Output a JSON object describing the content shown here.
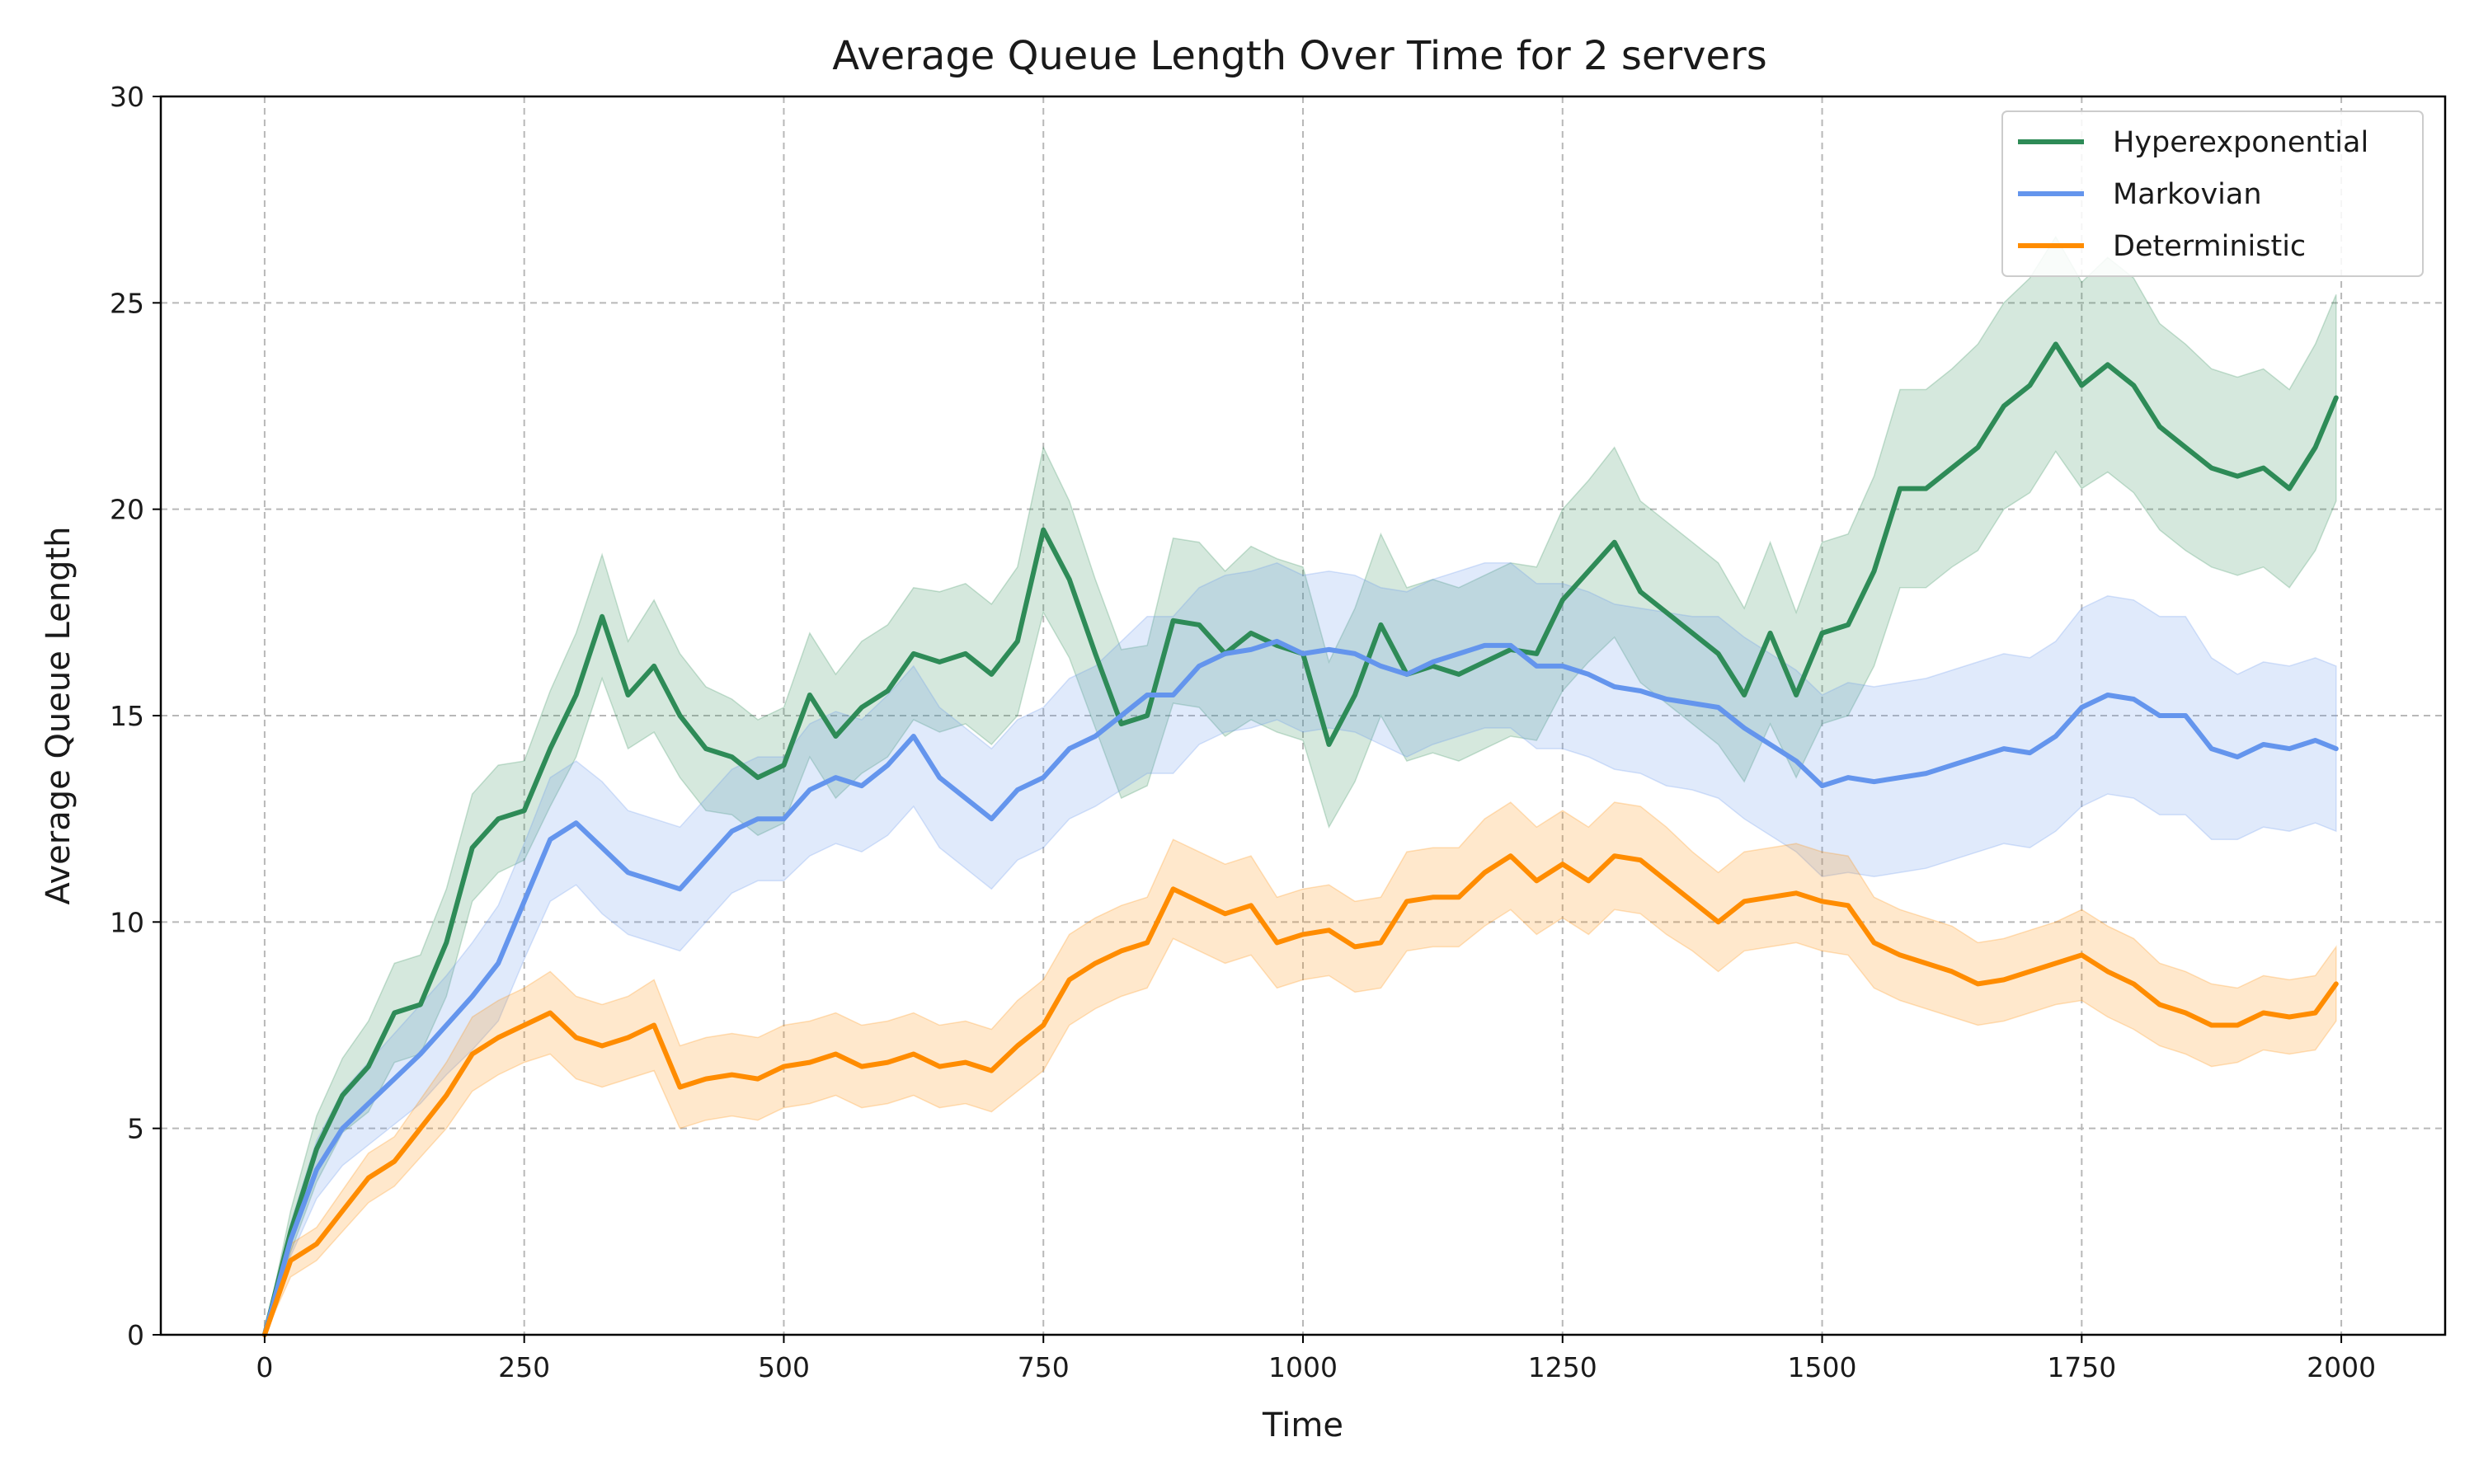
{
  "chart_data": {
    "type": "line",
    "title": "Average Queue Length Over Time for 2 servers",
    "xlabel": "Time",
    "ylabel": "Average Queue Length",
    "xlim": [
      -100,
      2100
    ],
    "ylim": [
      0,
      30
    ],
    "xticks": [
      0,
      250,
      500,
      750,
      1000,
      1250,
      1500,
      1750,
      2000
    ],
    "yticks": [
      0,
      5,
      10,
      15,
      20,
      25,
      30
    ],
    "grid": true,
    "legend_position": "top-right",
    "band_opacity": 0.2,
    "series": [
      {
        "name": "Hyperexponential",
        "color": "#2e8b57",
        "x": [
          0,
          25,
          50,
          75,
          100,
          125,
          150,
          175,
          200,
          225,
          250,
          275,
          300,
          325,
          350,
          375,
          400,
          425,
          450,
          475,
          500,
          525,
          550,
          575,
          600,
          625,
          650,
          675,
          700,
          725,
          750,
          775,
          800,
          825,
          850,
          875,
          900,
          925,
          950,
          975,
          1000,
          1025,
          1050,
          1075,
          1100,
          1125,
          1150,
          1175,
          1200,
          1225,
          1250,
          1275,
          1300,
          1325,
          1350,
          1375,
          1400,
          1425,
          1450,
          1475,
          1500,
          1525,
          1550,
          1575,
          1600,
          1625,
          1650,
          1675,
          1700,
          1725,
          1750,
          1775,
          1800,
          1825,
          1850,
          1875,
          1900,
          1925,
          1950,
          1975,
          1995
        ],
        "values": [
          0,
          2.5,
          4.5,
          5.8,
          6.5,
          7.8,
          8.0,
          9.5,
          11.8,
          12.5,
          12.7,
          14.2,
          15.5,
          17.4,
          15.5,
          16.2,
          15.0,
          14.2,
          14.0,
          13.5,
          13.8,
          15.5,
          14.5,
          15.2,
          15.6,
          16.5,
          16.3,
          16.5,
          16.0,
          16.8,
          19.5,
          18.3,
          16.5,
          14.8,
          15.0,
          17.3,
          17.2,
          16.5,
          17.0,
          16.7,
          16.5,
          14.3,
          15.5,
          17.2,
          16.0,
          16.2,
          16.0,
          16.3,
          16.6,
          16.5,
          17.8,
          18.5,
          19.2,
          18.0,
          17.5,
          17.0,
          16.5,
          15.5,
          17.0,
          15.5,
          17.0,
          17.2,
          18.5,
          20.5,
          20.5,
          21.0,
          21.5,
          22.5,
          23.0,
          24.0,
          23.0,
          23.5,
          23.0,
          22.0,
          21.5,
          21.0,
          20.8,
          21.0,
          20.5,
          21.5,
          22.7
        ],
        "lower": [
          0,
          2.0,
          3.7,
          4.9,
          5.4,
          6.6,
          6.8,
          8.2,
          10.5,
          11.2,
          11.5,
          12.8,
          14.0,
          15.9,
          14.2,
          14.6,
          13.5,
          12.7,
          12.6,
          12.1,
          12.4,
          14.0,
          13.0,
          13.6,
          14.0,
          14.9,
          14.6,
          14.8,
          14.3,
          15.0,
          17.5,
          16.4,
          14.7,
          13.0,
          13.3,
          15.3,
          15.2,
          14.5,
          14.9,
          14.6,
          14.4,
          12.3,
          13.4,
          15.0,
          13.9,
          14.1,
          13.9,
          14.2,
          14.5,
          14.4,
          15.6,
          16.3,
          16.9,
          15.8,
          15.3,
          14.8,
          14.3,
          13.4,
          14.8,
          13.5,
          14.8,
          15.0,
          16.2,
          18.1,
          18.1,
          18.6,
          19.0,
          20.0,
          20.4,
          21.4,
          20.5,
          20.9,
          20.4,
          19.5,
          19.0,
          18.6,
          18.4,
          18.6,
          18.1,
          19.0,
          20.2
        ],
        "upper": [
          0,
          3.0,
          5.3,
          6.7,
          7.6,
          9.0,
          9.2,
          10.8,
          13.1,
          13.8,
          13.9,
          15.6,
          17.0,
          18.9,
          16.8,
          17.8,
          16.5,
          15.7,
          15.4,
          14.9,
          15.2,
          17.0,
          16.0,
          16.8,
          17.2,
          18.1,
          18.0,
          18.2,
          17.7,
          18.6,
          21.5,
          20.2,
          18.3,
          16.6,
          16.7,
          19.3,
          19.2,
          18.5,
          19.1,
          18.8,
          18.6,
          16.3,
          17.6,
          19.4,
          18.1,
          18.3,
          18.1,
          18.4,
          18.7,
          18.6,
          20.0,
          20.7,
          21.5,
          20.2,
          19.7,
          19.2,
          18.7,
          17.6,
          19.2,
          17.5,
          19.2,
          19.4,
          20.8,
          22.9,
          22.9,
          23.4,
          24.0,
          25.0,
          25.6,
          26.6,
          25.5,
          26.1,
          25.6,
          24.5,
          24.0,
          23.4,
          23.2,
          23.4,
          22.9,
          24.0,
          25.2
        ]
      },
      {
        "name": "Markovian",
        "color": "#6495ed",
        "x": [
          0,
          25,
          50,
          75,
          100,
          125,
          150,
          175,
          200,
          225,
          250,
          275,
          300,
          325,
          350,
          375,
          400,
          425,
          450,
          475,
          500,
          525,
          550,
          575,
          600,
          625,
          650,
          675,
          700,
          725,
          750,
          775,
          800,
          825,
          850,
          875,
          900,
          925,
          950,
          975,
          1000,
          1025,
          1050,
          1075,
          1100,
          1125,
          1150,
          1175,
          1200,
          1225,
          1250,
          1275,
          1300,
          1325,
          1350,
          1375,
          1400,
          1425,
          1450,
          1475,
          1500,
          1525,
          1550,
          1575,
          1600,
          1625,
          1650,
          1675,
          1700,
          1725,
          1750,
          1775,
          1800,
          1825,
          1850,
          1875,
          1900,
          1925,
          1950,
          1975,
          1995
        ],
        "values": [
          0,
          2.3,
          4.0,
          5.0,
          5.6,
          6.2,
          6.8,
          7.5,
          8.2,
          9.0,
          10.5,
          12.0,
          12.4,
          11.8,
          11.2,
          11.0,
          10.8,
          11.5,
          12.2,
          12.5,
          12.5,
          13.2,
          13.5,
          13.3,
          13.8,
          14.5,
          13.5,
          13.0,
          12.5,
          13.2,
          13.5,
          14.2,
          14.5,
          15.0,
          15.5,
          15.5,
          16.2,
          16.5,
          16.6,
          16.8,
          16.5,
          16.6,
          16.5,
          16.2,
          16.0,
          16.3,
          16.5,
          16.7,
          16.7,
          16.2,
          16.2,
          16.0,
          15.7,
          15.6,
          15.4,
          15.3,
          15.2,
          14.7,
          14.3,
          13.9,
          13.3,
          13.5,
          13.4,
          13.5,
          13.6,
          13.8,
          14.0,
          14.2,
          14.1,
          14.5,
          15.2,
          15.5,
          15.4,
          15.0,
          15.0,
          14.2,
          14.0,
          14.3,
          14.2,
          14.4,
          14.2
        ],
        "lower": [
          0,
          1.9,
          3.3,
          4.1,
          4.6,
          5.1,
          5.6,
          6.3,
          6.9,
          7.6,
          9.1,
          10.5,
          10.9,
          10.2,
          9.7,
          9.5,
          9.3,
          10.0,
          10.7,
          11.0,
          11.0,
          11.6,
          11.9,
          11.7,
          12.1,
          12.8,
          11.8,
          11.3,
          10.8,
          11.5,
          11.8,
          12.5,
          12.8,
          13.2,
          13.6,
          13.6,
          14.3,
          14.6,
          14.7,
          14.9,
          14.6,
          14.7,
          14.6,
          14.3,
          14.0,
          14.3,
          14.5,
          14.7,
          14.7,
          14.2,
          14.2,
          14.0,
          13.7,
          13.6,
          13.3,
          13.2,
          13.0,
          12.5,
          12.1,
          11.7,
          11.1,
          11.2,
          11.1,
          11.2,
          11.3,
          11.5,
          11.7,
          11.9,
          11.8,
          12.2,
          12.8,
          13.1,
          13.0,
          12.6,
          12.6,
          12.0,
          12.0,
          12.3,
          12.2,
          12.4,
          12.2
        ],
        "upper": [
          0,
          2.7,
          4.7,
          5.9,
          6.6,
          7.3,
          8.0,
          8.7,
          9.5,
          10.4,
          11.9,
          13.5,
          13.9,
          13.4,
          12.7,
          12.5,
          12.3,
          13.0,
          13.7,
          14.0,
          14.0,
          14.8,
          15.1,
          14.9,
          15.5,
          16.2,
          15.2,
          14.7,
          14.2,
          14.9,
          15.2,
          15.9,
          16.2,
          16.8,
          17.4,
          17.4,
          18.1,
          18.4,
          18.5,
          18.7,
          18.4,
          18.5,
          18.4,
          18.1,
          18.0,
          18.3,
          18.5,
          18.7,
          18.7,
          18.2,
          18.2,
          18.0,
          17.7,
          17.6,
          17.5,
          17.4,
          17.4,
          16.9,
          16.5,
          16.1,
          15.5,
          15.8,
          15.7,
          15.8,
          15.9,
          16.1,
          16.3,
          16.5,
          16.4,
          16.8,
          17.6,
          17.9,
          17.8,
          17.4,
          17.4,
          16.4,
          16.0,
          16.3,
          16.2,
          16.4,
          16.2
        ]
      },
      {
        "name": "Deterministic",
        "color": "#ff8c00",
        "x": [
          0,
          25,
          50,
          75,
          100,
          125,
          150,
          175,
          200,
          225,
          250,
          275,
          300,
          325,
          350,
          375,
          400,
          425,
          450,
          475,
          500,
          525,
          550,
          575,
          600,
          625,
          650,
          675,
          700,
          725,
          750,
          775,
          800,
          825,
          850,
          875,
          900,
          925,
          950,
          975,
          1000,
          1025,
          1050,
          1075,
          1100,
          1125,
          1150,
          1175,
          1200,
          1225,
          1250,
          1275,
          1300,
          1325,
          1350,
          1375,
          1400,
          1425,
          1450,
          1475,
          1500,
          1525,
          1550,
          1575,
          1600,
          1625,
          1650,
          1675,
          1700,
          1725,
          1750,
          1775,
          1800,
          1825,
          1850,
          1875,
          1900,
          1925,
          1950,
          1975,
          1995
        ],
        "values": [
          0,
          1.8,
          2.2,
          3.0,
          3.8,
          4.2,
          5.0,
          5.8,
          6.8,
          7.2,
          7.5,
          7.8,
          7.2,
          7.0,
          7.2,
          7.5,
          6.0,
          6.2,
          6.3,
          6.2,
          6.5,
          6.6,
          6.8,
          6.5,
          6.6,
          6.8,
          6.5,
          6.6,
          6.4,
          7.0,
          7.5,
          8.6,
          9.0,
          9.3,
          9.5,
          10.8,
          10.5,
          10.2,
          10.4,
          9.5,
          9.7,
          9.8,
          9.4,
          9.5,
          10.5,
          10.6,
          10.6,
          11.2,
          11.6,
          11.0,
          11.4,
          11.0,
          11.6,
          11.5,
          11.0,
          10.5,
          10.0,
          10.5,
          10.6,
          10.7,
          10.5,
          10.4,
          9.5,
          9.2,
          9.0,
          8.8,
          8.5,
          8.6,
          8.8,
          9.0,
          9.2,
          8.8,
          8.5,
          8.0,
          7.8,
          7.5,
          7.5,
          7.8,
          7.7,
          7.8,
          8.5
        ],
        "lower": [
          0,
          1.4,
          1.8,
          2.5,
          3.2,
          3.6,
          4.3,
          5.0,
          5.9,
          6.3,
          6.6,
          6.8,
          6.2,
          6.0,
          6.2,
          6.4,
          5.0,
          5.2,
          5.3,
          5.2,
          5.5,
          5.6,
          5.8,
          5.5,
          5.6,
          5.8,
          5.5,
          5.6,
          5.4,
          5.9,
          6.4,
          7.5,
          7.9,
          8.2,
          8.4,
          9.6,
          9.3,
          9.0,
          9.2,
          8.4,
          8.6,
          8.7,
          8.3,
          8.4,
          9.3,
          9.4,
          9.4,
          9.9,
          10.3,
          9.7,
          10.1,
          9.7,
          10.3,
          10.2,
          9.7,
          9.3,
          8.8,
          9.3,
          9.4,
          9.5,
          9.3,
          9.2,
          8.4,
          8.1,
          7.9,
          7.7,
          7.5,
          7.6,
          7.8,
          8.0,
          8.1,
          7.7,
          7.4,
          7.0,
          6.8,
          6.5,
          6.6,
          6.9,
          6.8,
          6.9,
          7.6
        ],
        "upper": [
          0,
          2.2,
          2.6,
          3.5,
          4.4,
          4.8,
          5.7,
          6.6,
          7.7,
          8.1,
          8.4,
          8.8,
          8.2,
          8.0,
          8.2,
          8.6,
          7.0,
          7.2,
          7.3,
          7.2,
          7.5,
          7.6,
          7.8,
          7.5,
          7.6,
          7.8,
          7.5,
          7.6,
          7.4,
          8.1,
          8.6,
          9.7,
          10.1,
          10.4,
          10.6,
          12.0,
          11.7,
          11.4,
          11.6,
          10.6,
          10.8,
          10.9,
          10.5,
          10.6,
          11.7,
          11.8,
          11.8,
          12.5,
          12.9,
          12.3,
          12.7,
          12.3,
          12.9,
          12.8,
          12.3,
          11.7,
          11.2,
          11.7,
          11.8,
          11.9,
          11.7,
          11.6,
          10.6,
          10.3,
          10.1,
          9.9,
          9.5,
          9.6,
          9.8,
          10.0,
          10.3,
          9.9,
          9.6,
          9.0,
          8.8,
          8.5,
          8.4,
          8.7,
          8.6,
          8.7,
          9.4
        ]
      }
    ]
  }
}
